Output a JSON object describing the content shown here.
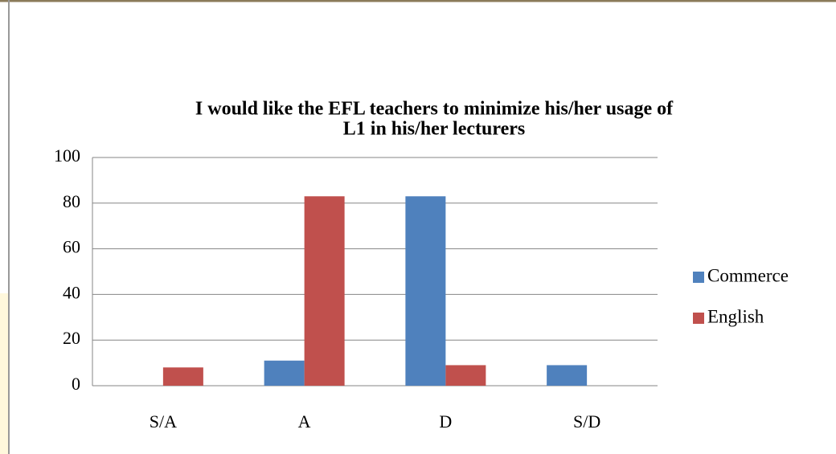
{
  "chart_data": {
    "type": "bar",
    "title": [
      "I would like the EFL teachers to minimize his/her usage of",
      "L1 in his/her lecturers"
    ],
    "categories": [
      "S/A",
      "A",
      "D",
      "S/D"
    ],
    "series": [
      {
        "name": "Commerce",
        "color": "#4f81bd",
        "values": [
          0,
          11,
          83,
          9
        ]
      },
      {
        "name": "English",
        "color": "#c0504d",
        "values": [
          8,
          83,
          9,
          0
        ]
      }
    ],
    "ylim": [
      0,
      100
    ],
    "yticks": [
      0,
      20,
      40,
      60,
      80,
      100
    ],
    "grid": true,
    "legend": "right"
  }
}
